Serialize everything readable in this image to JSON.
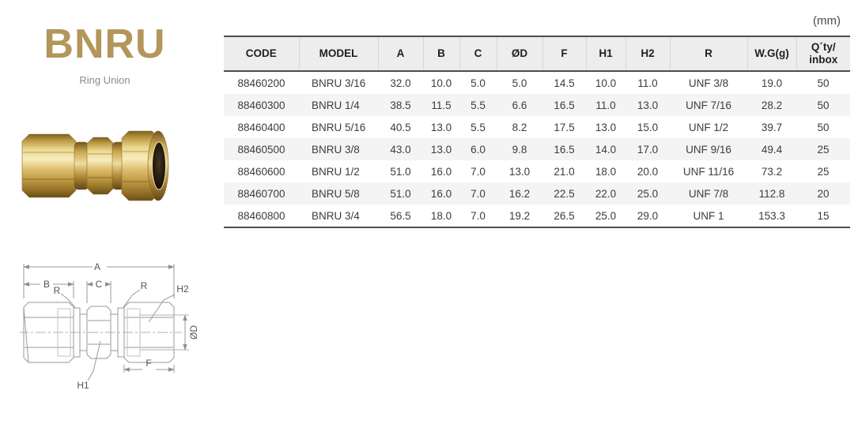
{
  "header": {
    "unit_label": "(mm)"
  },
  "product": {
    "title": "BNRU",
    "subtitle": "Ring Union"
  },
  "table": {
    "columns": [
      "CODE",
      "MODEL",
      "A",
      "B",
      "C",
      "ØD",
      "F",
      "H1",
      "H2",
      "R",
      "W.G(g)",
      "Q´ty/\ninbox"
    ],
    "rows": [
      [
        "88460200",
        "BNRU 3/16",
        "32.0",
        "10.0",
        "5.0",
        "5.0",
        "14.5",
        "10.0",
        "11.0",
        "UNF 3/8",
        "19.0",
        "50"
      ],
      [
        "88460300",
        "BNRU 1/4",
        "38.5",
        "11.5",
        "5.5",
        "6.6",
        "16.5",
        "11.0",
        "13.0",
        "UNF 7/16",
        "28.2",
        "50"
      ],
      [
        "88460400",
        "BNRU 5/16",
        "40.5",
        "13.0",
        "5.5",
        "8.2",
        "17.5",
        "13.0",
        "15.0",
        "UNF 1/2",
        "39.7",
        "50"
      ],
      [
        "88460500",
        "BNRU 3/8",
        "43.0",
        "13.0",
        "6.0",
        "9.8",
        "16.5",
        "14.0",
        "17.0",
        "UNF 9/16",
        "49.4",
        "25"
      ],
      [
        "88460600",
        "BNRU 1/2",
        "51.0",
        "16.0",
        "7.0",
        "13.0",
        "21.0",
        "18.0",
        "20.0",
        "UNF 11/16",
        "73.2",
        "25"
      ],
      [
        "88460700",
        "BNRU 5/8",
        "51.0",
        "16.0",
        "7.0",
        "16.2",
        "22.5",
        "22.0",
        "25.0",
        "UNF 7/8",
        "112.8",
        "20"
      ],
      [
        "88460800",
        "BNRU 3/4",
        "56.5",
        "18.0",
        "7.0",
        "19.2",
        "26.5",
        "25.0",
        "29.0",
        "UNF 1",
        "153.3",
        "15"
      ]
    ]
  },
  "drawing_labels": {
    "a": "A",
    "b": "B",
    "c": "C",
    "r_left": "R",
    "r_right": "R",
    "h1": "H1",
    "h2": "H2",
    "f": "F",
    "od": "ØD"
  },
  "colors": {
    "accent_gold": "#b3965a",
    "header_row_bg": "#ededed",
    "alt_row_bg": "#f4f4f4",
    "border_dark": "#4d4d4d"
  }
}
